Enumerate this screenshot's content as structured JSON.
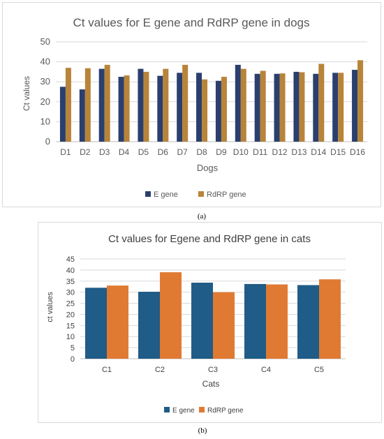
{
  "chart_data": [
    {
      "type": "bar",
      "title": "Ct values for E gene and RdRP gene in dogs",
      "xlabel": "Dogs",
      "ylabel": "Ct values",
      "ylim": [
        0,
        50
      ],
      "yticks": [
        0,
        10,
        20,
        30,
        40,
        50
      ],
      "grid": true,
      "legend": "bottom",
      "categories": [
        "D1",
        "D2",
        "D3",
        "D4",
        "D5",
        "D6",
        "D7",
        "D8",
        "D9",
        "D10",
        "D11",
        "D12",
        "D13",
        "D14",
        "D15",
        "D16"
      ],
      "series": [
        {
          "name": "E gene",
          "color": "#2b3f6e",
          "values": [
            27.5,
            26.2,
            36.5,
            32.5,
            36.5,
            33.0,
            34.5,
            34.5,
            30.5,
            38.5,
            34.0,
            34.0,
            35.0,
            34.0,
            34.5,
            36.0
          ]
        },
        {
          "name": "RdRP gene",
          "color": "#b8843a",
          "values": [
            37.0,
            36.8,
            38.5,
            33.2,
            35.0,
            36.5,
            38.5,
            31.2,
            32.5,
            36.5,
            35.5,
            34.2,
            34.8,
            39.0,
            34.5,
            40.8
          ]
        }
      ]
    },
    {
      "type": "bar",
      "title": "Ct values for Egene and RdRP gene in cats",
      "xlabel": "Cats",
      "ylabel": "ct values",
      "ylim": [
        0,
        45
      ],
      "yticks": [
        0,
        5,
        10,
        15,
        20,
        25,
        30,
        35,
        40,
        45
      ],
      "grid": true,
      "legend": "bottom",
      "categories": [
        "C1",
        "C2",
        "C3",
        "C4",
        "C5"
      ],
      "series": [
        {
          "name": "E gene",
          "color": "#1f5c87",
          "values": [
            32.0,
            30.2,
            34.3,
            33.7,
            33.2
          ]
        },
        {
          "name": "RdRP gene",
          "color": "#e07a33",
          "values": [
            33.0,
            39.0,
            30.0,
            33.5,
            35.8
          ]
        }
      ]
    }
  ],
  "captions": {
    "a": "(a)",
    "b": "(b)"
  }
}
